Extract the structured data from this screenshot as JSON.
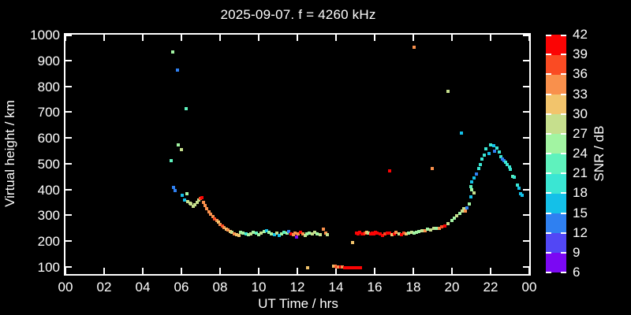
{
  "chart_data": {
    "type": "scatter",
    "title": "2025-09-07. f = 4260 kHz",
    "xlabel": "UT Time / hrs",
    "ylabel": "Virtual height / km",
    "x_ticks": [
      0,
      2,
      4,
      6,
      8,
      10,
      12,
      14,
      16,
      18,
      20,
      22,
      24
    ],
    "x_tick_labels": [
      "00",
      "02",
      "04",
      "06",
      "08",
      "10",
      "12",
      "14",
      "16",
      "18",
      "20",
      "22",
      "00"
    ],
    "y_ticks": [
      100,
      200,
      300,
      400,
      500,
      600,
      700,
      800,
      900,
      1000
    ],
    "y_tick_labels": [
      "100",
      "200",
      "300",
      "400",
      "500",
      "600",
      "700",
      "800",
      "900",
      "1000"
    ],
    "x_range_hours": [
      0,
      24
    ],
    "y_range_km": [
      72,
      1000
    ],
    "grid": false,
    "background": "#000000",
    "axis_color": "#ffffff",
    "marker": "square",
    "color_scale": {
      "label": "SNR / dB",
      "min": 6,
      "max": 42,
      "step": 3,
      "tick_labels": [
        "6",
        "9",
        "12",
        "15",
        "18",
        "21",
        "24",
        "27",
        "30",
        "33",
        "36",
        "39",
        "42"
      ],
      "palette_low_to_high": [
        "#7B08F3",
        "#5247F5",
        "#2F80F1",
        "#14C0E8",
        "#3AE6D3",
        "#5FF2BD",
        "#A2F4A2",
        "#C6DF8D",
        "#F2C46C",
        "#F9904C",
        "#FA4B23",
        "#FB0404"
      ]
    },
    "points_format": [
      "ut_hours",
      "virtual_height_km",
      "snr_db"
    ],
    "points": [
      [
        5.45,
        512,
        21
      ],
      [
        5.55,
        932,
        25
      ],
      [
        5.61,
        409,
        13
      ],
      [
        5.69,
        396,
        13
      ],
      [
        5.81,
        864,
        13
      ],
      [
        5.85,
        574,
        24
      ],
      [
        5.98,
        555,
        27
      ],
      [
        6.06,
        378,
        16
      ],
      [
        6.16,
        358,
        17
      ],
      [
        6.26,
        713,
        22
      ],
      [
        6.3,
        384,
        26
      ],
      [
        6.34,
        353,
        29
      ],
      [
        6.43,
        347,
        27
      ],
      [
        6.5,
        343,
        28
      ],
      [
        6.6,
        334,
        28
      ],
      [
        6.7,
        340,
        27
      ],
      [
        6.8,
        350,
        29
      ],
      [
        6.9,
        358,
        28
      ],
      [
        6.98,
        365,
        38
      ],
      [
        7.06,
        368,
        39
      ],
      [
        7.14,
        351,
        34
      ],
      [
        7.22,
        338,
        34
      ],
      [
        7.32,
        326,
        35
      ],
      [
        7.42,
        315,
        33
      ],
      [
        7.52,
        305,
        34
      ],
      [
        7.62,
        295,
        35
      ],
      [
        7.72,
        287,
        37
      ],
      [
        7.82,
        280,
        34
      ],
      [
        7.92,
        273,
        31
      ],
      [
        8.02,
        266,
        34
      ],
      [
        8.12,
        258,
        38
      ],
      [
        8.22,
        252,
        34
      ],
      [
        8.32,
        246,
        30
      ],
      [
        8.42,
        242,
        34
      ],
      [
        8.52,
        238,
        31
      ],
      [
        8.63,
        233,
        28
      ],
      [
        8.74,
        229,
        33
      ],
      [
        8.85,
        226,
        30
      ],
      [
        8.96,
        222,
        31
      ],
      [
        9.07,
        235,
        26
      ],
      [
        9.2,
        230,
        25
      ],
      [
        9.33,
        227,
        18
      ],
      [
        9.46,
        224,
        26
      ],
      [
        9.6,
        229,
        28
      ],
      [
        9.73,
        235,
        26
      ],
      [
        9.86,
        231,
        23
      ],
      [
        10.0,
        226,
        26
      ],
      [
        10.13,
        231,
        28
      ],
      [
        10.27,
        237,
        26
      ],
      [
        10.4,
        240,
        16
      ],
      [
        10.53,
        234,
        25
      ],
      [
        10.67,
        229,
        26
      ],
      [
        10.8,
        226,
        17
      ],
      [
        10.93,
        231,
        28
      ],
      [
        11.06,
        222,
        16
      ],
      [
        11.19,
        229,
        25
      ],
      [
        11.32,
        235,
        23
      ],
      [
        11.45,
        230,
        26
      ],
      [
        11.55,
        238,
        13
      ],
      [
        11.68,
        229,
        39
      ],
      [
        11.79,
        225,
        34
      ],
      [
        11.88,
        231,
        35
      ],
      [
        11.97,
        216,
        7
      ],
      [
        12.06,
        227,
        34
      ],
      [
        12.16,
        235,
        39
      ],
      [
        12.29,
        229,
        35
      ],
      [
        12.39,
        221,
        27
      ],
      [
        12.5,
        227,
        24
      ],
      [
        12.53,
        97,
        32
      ],
      [
        12.63,
        231,
        26
      ],
      [
        12.76,
        227,
        27
      ],
      [
        12.9,
        235,
        28
      ],
      [
        13.03,
        229,
        26
      ],
      [
        13.17,
        225,
        29
      ],
      [
        13.35,
        247,
        34
      ],
      [
        13.45,
        231,
        35
      ],
      [
        13.56,
        226,
        29
      ],
      [
        13.87,
        102,
        31
      ],
      [
        13.96,
        102,
        34
      ],
      [
        14.05,
        99,
        37
      ],
      [
        14.14,
        101,
        34
      ],
      [
        14.23,
        99,
        39
      ],
      [
        14.32,
        100,
        34
      ],
      [
        14.45,
        96,
        40
      ],
      [
        14.55,
        97,
        41
      ],
      [
        14.65,
        96,
        40
      ],
      [
        14.77,
        97,
        41
      ],
      [
        14.85,
        195,
        31
      ],
      [
        14.89,
        98,
        40
      ],
      [
        15.01,
        96,
        41
      ],
      [
        15.13,
        97,
        40
      ],
      [
        15.25,
        98,
        41
      ],
      [
        15.06,
        231,
        40
      ],
      [
        15.15,
        228,
        41
      ],
      [
        15.24,
        233,
        39
      ],
      [
        15.33,
        229,
        41
      ],
      [
        15.42,
        227,
        40
      ],
      [
        15.51,
        231,
        37
      ],
      [
        15.6,
        234,
        30
      ],
      [
        15.69,
        230,
        28
      ],
      [
        15.78,
        227,
        40
      ],
      [
        15.87,
        232,
        41
      ],
      [
        15.96,
        229,
        39
      ],
      [
        16.05,
        233,
        40
      ],
      [
        16.14,
        230,
        40
      ],
      [
        16.27,
        227,
        40
      ],
      [
        16.4,
        223,
        39
      ],
      [
        16.53,
        228,
        37
      ],
      [
        16.66,
        232,
        40
      ],
      [
        16.76,
        230,
        39
      ],
      [
        16.77,
        471,
        39
      ],
      [
        16.9,
        225,
        31
      ],
      [
        17.0,
        229,
        40
      ],
      [
        17.12,
        233,
        34
      ],
      [
        17.25,
        229,
        28
      ],
      [
        17.38,
        225,
        40
      ],
      [
        17.5,
        230,
        37
      ],
      [
        17.63,
        227,
        31
      ],
      [
        17.76,
        231,
        26
      ],
      [
        17.9,
        235,
        28
      ],
      [
        18.03,
        231,
        26
      ],
      [
        18.04,
        952,
        35
      ],
      [
        18.16,
        235,
        25
      ],
      [
        18.3,
        237,
        26
      ],
      [
        18.45,
        241,
        29
      ],
      [
        18.6,
        239,
        34
      ],
      [
        18.75,
        245,
        26
      ],
      [
        18.9,
        243,
        27
      ],
      [
        18.97,
        480,
        34
      ],
      [
        19.05,
        248,
        29
      ],
      [
        19.2,
        251,
        26
      ],
      [
        19.35,
        249,
        35
      ],
      [
        19.45,
        257,
        37
      ],
      [
        19.62,
        259,
        39
      ],
      [
        19.78,
        268,
        27
      ],
      [
        19.78,
        781,
        29
      ],
      [
        19.99,
        280,
        26
      ],
      [
        20.11,
        289,
        25
      ],
      [
        20.23,
        298,
        29
      ],
      [
        20.39,
        307,
        26
      ],
      [
        20.47,
        619,
        17
      ],
      [
        20.55,
        316,
        29
      ],
      [
        20.63,
        325,
        29
      ],
      [
        20.71,
        318,
        34
      ],
      [
        20.79,
        328,
        13
      ],
      [
        20.88,
        344,
        26
      ],
      [
        20.96,
        371,
        16
      ],
      [
        20.96,
        411,
        22
      ],
      [
        21.0,
        398,
        26
      ],
      [
        21.04,
        429,
        16
      ],
      [
        21.13,
        386,
        29
      ],
      [
        21.16,
        444,
        16
      ],
      [
        21.28,
        459,
        14
      ],
      [
        21.37,
        481,
        19
      ],
      [
        21.46,
        497,
        19
      ],
      [
        21.57,
        517,
        19
      ],
      [
        21.69,
        533,
        19
      ],
      [
        21.77,
        557,
        19
      ],
      [
        21.93,
        539,
        16
      ],
      [
        22.02,
        572,
        19
      ],
      [
        22.18,
        569,
        16
      ],
      [
        22.22,
        548,
        14
      ],
      [
        22.34,
        560,
        19
      ],
      [
        22.46,
        545,
        19
      ],
      [
        22.54,
        526,
        19
      ],
      [
        22.63,
        517,
        13
      ],
      [
        22.71,
        511,
        13
      ],
      [
        22.79,
        505,
        19
      ],
      [
        22.87,
        496,
        19
      ],
      [
        22.99,
        487,
        19
      ],
      [
        23.03,
        478,
        19
      ],
      [
        23.16,
        450,
        22
      ],
      [
        23.24,
        447,
        19
      ],
      [
        23.4,
        417,
        19
      ],
      [
        23.48,
        405,
        16
      ],
      [
        23.56,
        384,
        16
      ],
      [
        23.64,
        378,
        17
      ]
    ]
  }
}
